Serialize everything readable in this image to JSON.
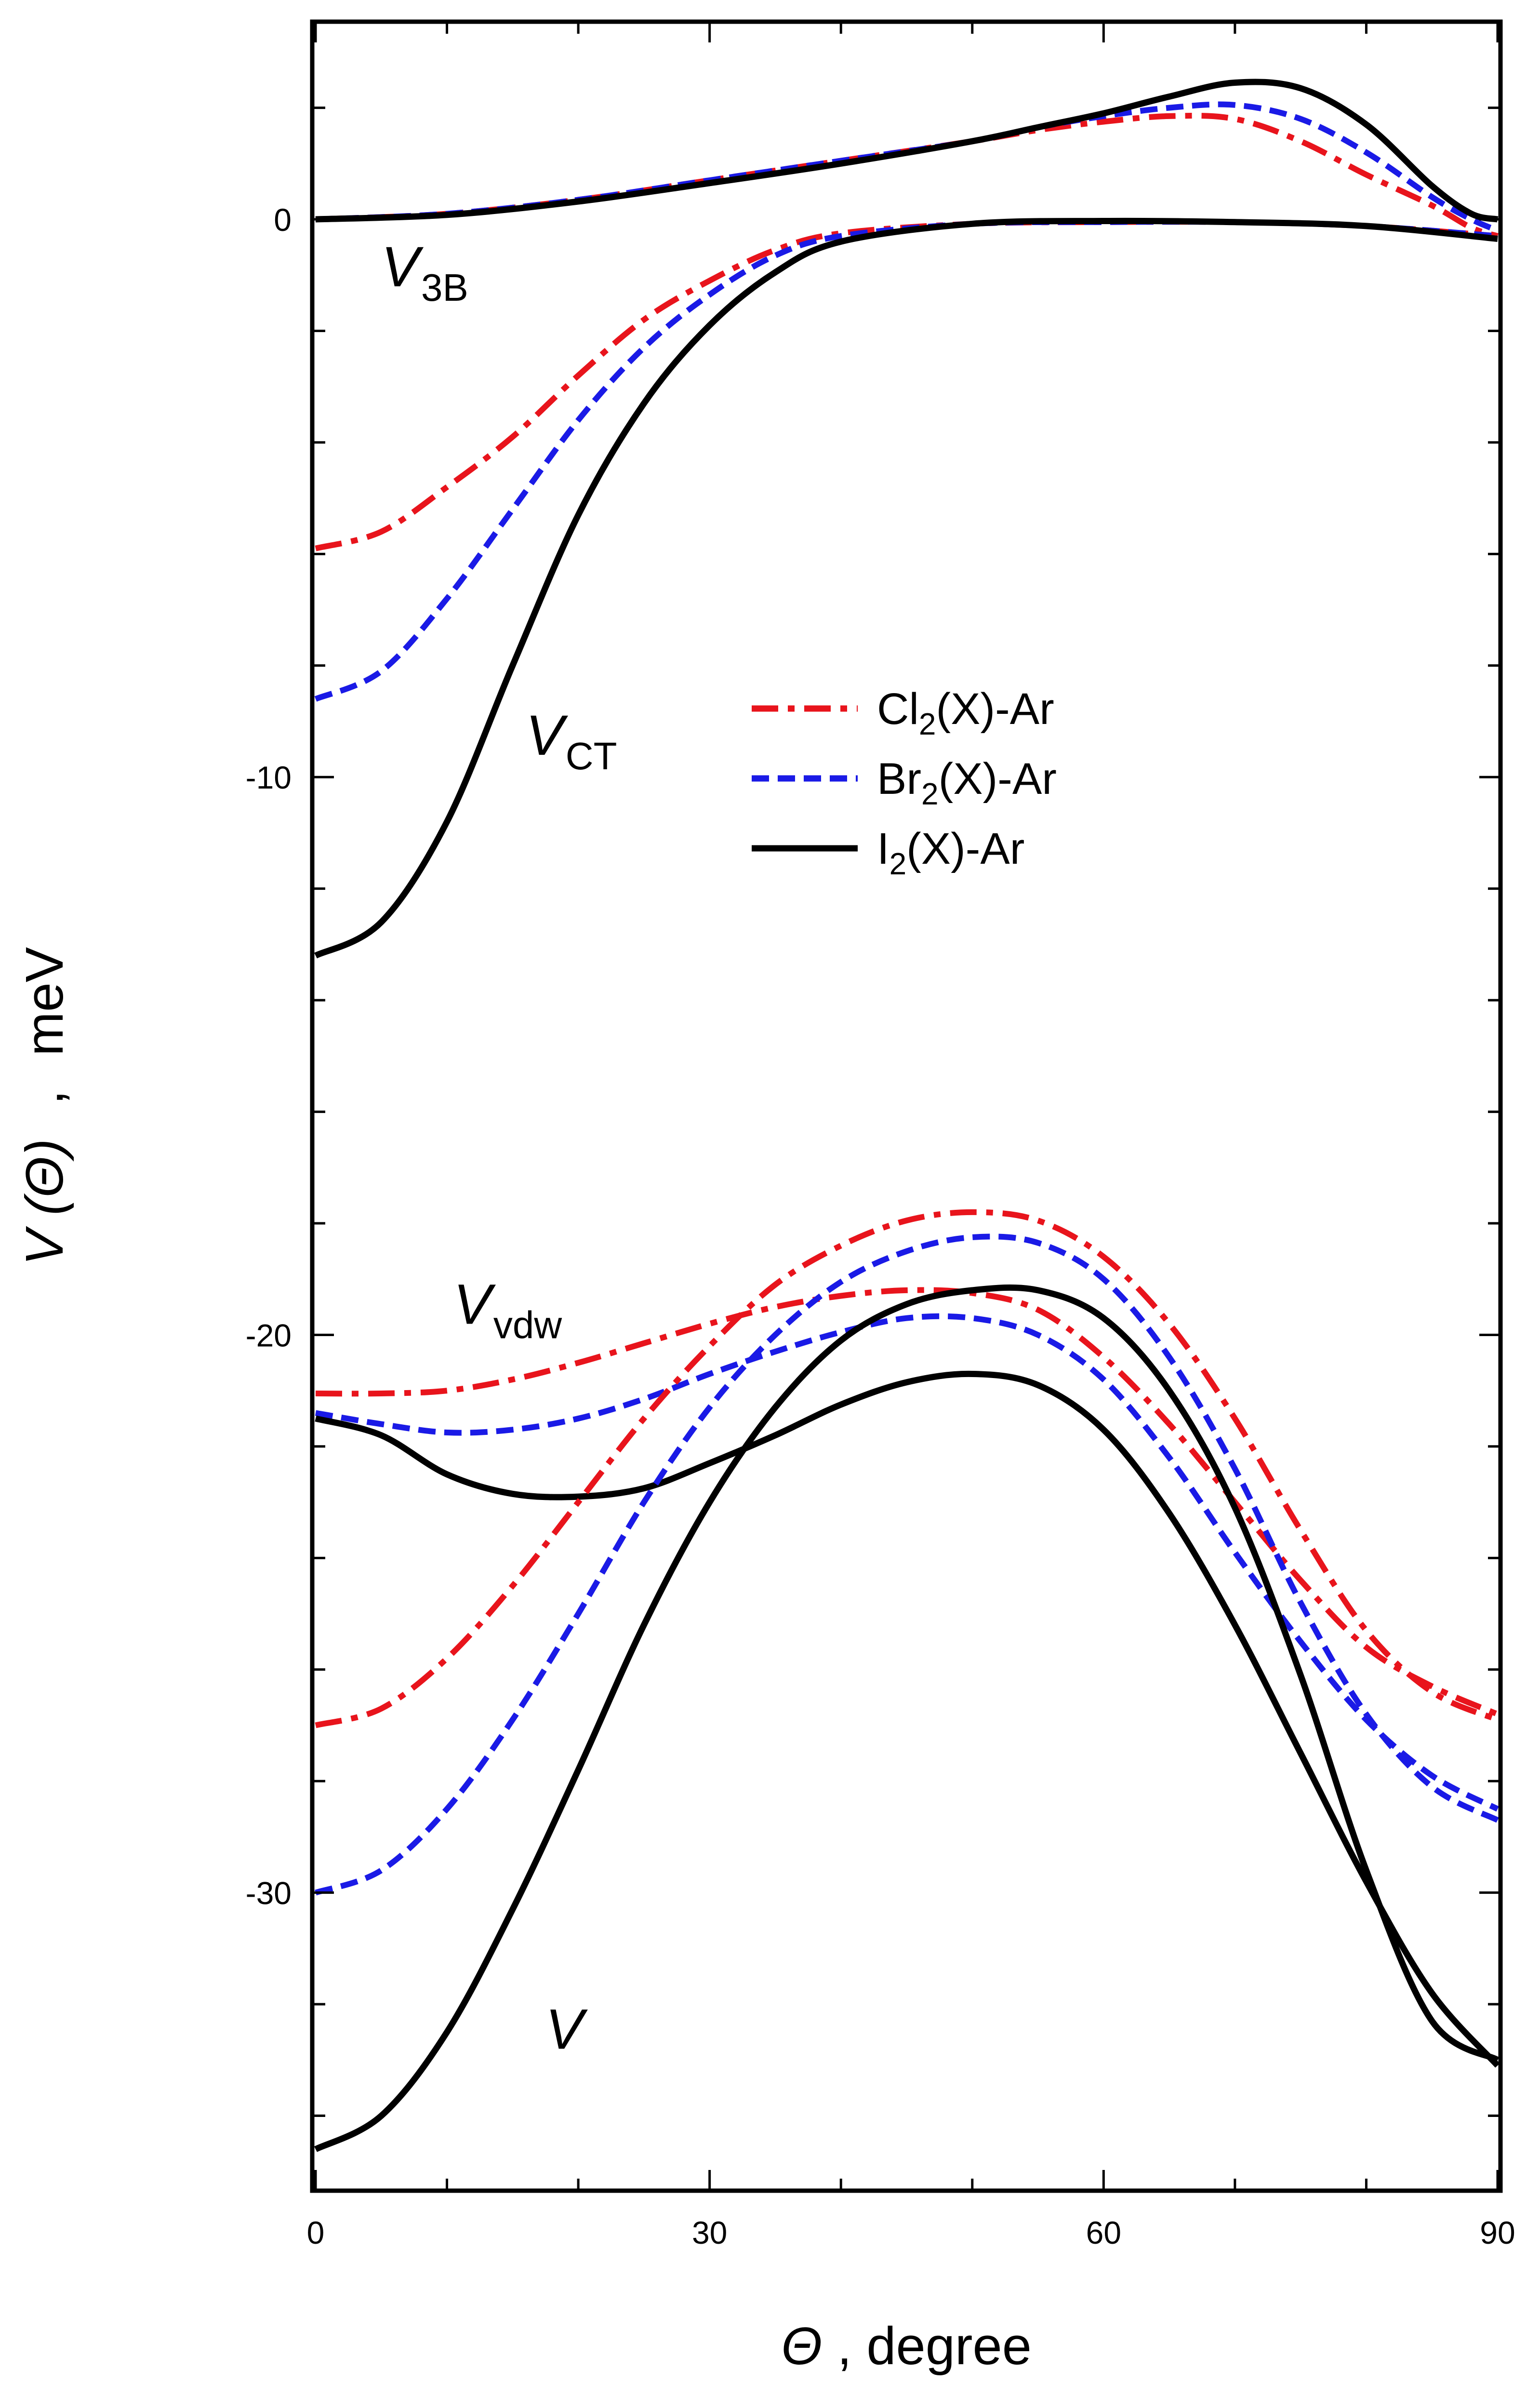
{
  "chart_data": {
    "type": "line",
    "xlabel_symbol": "Θ",
    "xlabel_text": ", degree",
    "ylabel_main": "V (Θ)",
    "ylabel_sep": ",",
    "ylabel_unit": "meV",
    "xlim": [
      0,
      90
    ],
    "ylim": [
      -35.3,
      3.5
    ],
    "x_ticks": [
      0,
      30,
      60,
      90
    ],
    "y_ticks": [
      0,
      -10,
      -20,
      -30
    ],
    "x_tick_labels": [
      "0",
      "30",
      "60",
      "90"
    ],
    "y_tick_labels": [
      "0",
      "-10",
      "-20",
      "-30"
    ],
    "legend": {
      "placement": "center-right",
      "entries": [
        {
          "pre": "Cl",
          "sub": "2",
          "post": "(X)-Ar",
          "color": "#e8141c",
          "dash": "dashdot"
        },
        {
          "pre": "Br",
          "sub": "2",
          "post": "(X)-Ar",
          "color": "#1a1ae6",
          "dash": "dashed"
        },
        {
          "pre": "I",
          "sub": "2",
          "post": "(X)-Ar",
          "color": "#000000",
          "dash": "solid"
        }
      ]
    },
    "curve_labels": [
      {
        "main": "V",
        "sub": "3B",
        "x": 5,
        "y": -1.2
      },
      {
        "main": "V",
        "sub": "CT",
        "x": 16,
        "y": -9.6
      },
      {
        "main": "V",
        "sub": "vdw",
        "x": 10.5,
        "y": -19.8
      },
      {
        "main": "V",
        "sub": "",
        "x": 17.5,
        "y": -32.8
      }
    ],
    "series": [
      {
        "name": "Cl2(X)-Ar V3B",
        "color": "#e8141c",
        "dash": "dashdot",
        "x": [
          0,
          10,
          20,
          30,
          40,
          50,
          55,
          60,
          65,
          70,
          75,
          80,
          85,
          88,
          90
        ],
        "y": [
          0,
          0.1,
          0.35,
          0.7,
          1.05,
          1.4,
          1.6,
          1.75,
          1.85,
          1.8,
          1.4,
          0.8,
          0.25,
          -0.15,
          -0.3
        ]
      },
      {
        "name": "Br2(X)-Ar V3B",
        "color": "#1a1ae6",
        "dash": "dashed",
        "x": [
          0,
          10,
          20,
          30,
          40,
          50,
          55,
          60,
          65,
          70,
          75,
          80,
          85,
          88,
          90
        ],
        "y": [
          0,
          0.1,
          0.35,
          0.7,
          1.05,
          1.4,
          1.65,
          1.85,
          2.0,
          2.05,
          1.8,
          1.2,
          0.4,
          0.0,
          -0.2
        ]
      },
      {
        "name": "I2(X)-Ar V3B",
        "color": "#000000",
        "dash": "solid",
        "x": [
          0,
          10,
          20,
          30,
          40,
          50,
          55,
          60,
          65,
          70,
          75,
          80,
          85,
          88,
          90
        ],
        "y": [
          0,
          0.08,
          0.32,
          0.65,
          1.0,
          1.4,
          1.65,
          1.9,
          2.2,
          2.45,
          2.35,
          1.7,
          0.6,
          0.1,
          0
        ]
      },
      {
        "name": "Cl2(X)-Ar VCT",
        "color": "#e8141c",
        "dash": "dashdot",
        "x": [
          0,
          5,
          10,
          15,
          20,
          25,
          30,
          35,
          40,
          50,
          60,
          70,
          80,
          90
        ],
        "y": [
          -5.9,
          -5.6,
          -4.8,
          -3.9,
          -2.8,
          -1.8,
          -1.1,
          -0.55,
          -0.25,
          -0.08,
          -0.05,
          -0.05,
          -0.12,
          -0.3
        ]
      },
      {
        "name": "Br2(X)-Ar VCT",
        "color": "#1a1ae6",
        "dash": "dashed",
        "x": [
          0,
          5,
          10,
          15,
          20,
          25,
          30,
          35,
          40,
          50,
          60,
          70,
          80,
          90
        ],
        "y": [
          -8.6,
          -8.1,
          -6.8,
          -5.2,
          -3.6,
          -2.3,
          -1.35,
          -0.65,
          -0.3,
          -0.08,
          -0.05,
          -0.05,
          -0.12,
          -0.3
        ]
      },
      {
        "name": "I2(X)-Ar VCT",
        "color": "#000000",
        "dash": "solid",
        "x": [
          0,
          5,
          10,
          15,
          20,
          25,
          30,
          35,
          40,
          50,
          60,
          70,
          80,
          90
        ],
        "y": [
          -13.2,
          -12.6,
          -10.8,
          -8.0,
          -5.3,
          -3.3,
          -1.9,
          -0.95,
          -0.4,
          -0.08,
          -0.03,
          -0.05,
          -0.12,
          -0.35
        ]
      },
      {
        "name": "Cl2(X)-Ar Vvdw",
        "color": "#e8141c",
        "dash": "dashdot",
        "x": [
          0,
          5,
          10,
          15,
          20,
          25,
          30,
          35,
          40,
          45,
          50,
          55,
          60,
          65,
          70,
          75,
          80,
          85,
          90
        ],
        "y": [
          -21.05,
          -21.05,
          -21.0,
          -20.8,
          -20.5,
          -20.15,
          -19.8,
          -19.5,
          -19.3,
          -19.2,
          -19.25,
          -19.55,
          -20.4,
          -21.6,
          -23.0,
          -24.4,
          -25.6,
          -26.3,
          -26.8
        ]
      },
      {
        "name": "Br2(X)-Ar Vvdw",
        "color": "#1a1ae6",
        "dash": "dashed",
        "x": [
          0,
          5,
          10,
          15,
          20,
          25,
          30,
          35,
          40,
          45,
          50,
          55,
          60,
          65,
          70,
          75,
          80,
          85,
          90
        ],
        "y": [
          -21.4,
          -21.6,
          -21.75,
          -21.7,
          -21.5,
          -21.15,
          -20.7,
          -20.3,
          -19.95,
          -19.7,
          -19.7,
          -20.0,
          -20.8,
          -22.2,
          -23.9,
          -25.5,
          -26.9,
          -27.9,
          -28.5
        ]
      },
      {
        "name": "I2(X)-Ar Vvdw",
        "color": "#000000",
        "dash": "solid",
        "x": [
          0,
          5,
          10,
          15,
          20,
          25,
          30,
          35,
          40,
          45,
          50,
          55,
          60,
          65,
          70,
          75,
          80,
          85,
          90
        ],
        "y": [
          -21.5,
          -21.8,
          -22.5,
          -22.85,
          -22.9,
          -22.75,
          -22.3,
          -21.8,
          -21.25,
          -20.85,
          -20.7,
          -20.9,
          -21.7,
          -23.2,
          -25.2,
          -27.5,
          -29.8,
          -31.8,
          -33.1
        ]
      },
      {
        "name": "Cl2(X)-Ar V",
        "color": "#e8141c",
        "dash": "dashdot",
        "x": [
          0,
          5,
          10,
          15,
          20,
          25,
          30,
          35,
          40,
          45,
          50,
          55,
          60,
          65,
          70,
          75,
          80,
          85,
          90
        ],
        "y": [
          -27.0,
          -26.7,
          -25.8,
          -24.5,
          -23.0,
          -21.5,
          -20.2,
          -19.1,
          -18.4,
          -17.95,
          -17.8,
          -17.95,
          -18.6,
          -19.8,
          -21.5,
          -23.5,
          -25.3,
          -26.4,
          -26.9
        ]
      },
      {
        "name": "Br2(X)-Ar V",
        "color": "#1a1ae6",
        "dash": "dashed",
        "x": [
          0,
          5,
          10,
          15,
          20,
          25,
          30,
          35,
          40,
          45,
          50,
          55,
          60,
          65,
          70,
          75,
          80,
          85,
          90
        ],
        "y": [
          -30.0,
          -29.6,
          -28.5,
          -26.9,
          -25.0,
          -23.0,
          -21.3,
          -20.0,
          -19.05,
          -18.5,
          -18.25,
          -18.35,
          -19.0,
          -20.4,
          -22.4,
          -24.8,
          -26.8,
          -28.1,
          -28.7
        ]
      },
      {
        "name": "I2(X)-Ar V",
        "color": "#000000",
        "dash": "solid",
        "x": [
          0,
          5,
          10,
          15,
          20,
          25,
          30,
          35,
          40,
          45,
          50,
          55,
          60,
          65,
          70,
          75,
          80,
          85,
          90
        ],
        "y": [
          -34.6,
          -34.0,
          -32.5,
          -30.3,
          -27.8,
          -25.2,
          -23.0,
          -21.3,
          -20.1,
          -19.45,
          -19.2,
          -19.2,
          -19.7,
          -21.0,
          -23.1,
          -26.1,
          -29.6,
          -32.3,
          -33.0
        ]
      }
    ]
  }
}
